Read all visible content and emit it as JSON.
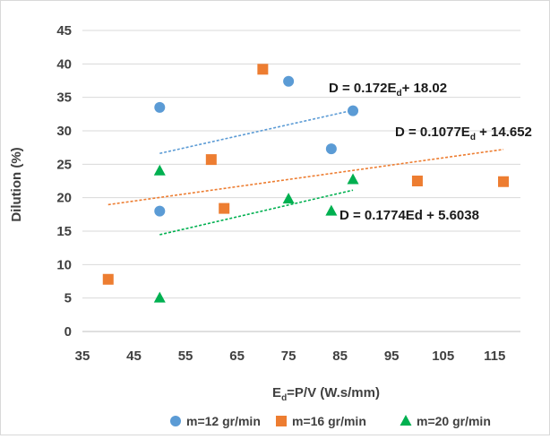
{
  "chart_data": {
    "type": "scatter",
    "xlabel": "E",
    "xlabel_sub": "d",
    "xlabel_rest": "=P/V (W.s/mm)",
    "ylabel": "Dilution (%)",
    "xlim": [
      35,
      120
    ],
    "ylim": [
      0,
      45
    ],
    "x_ticks": [
      "35",
      "45",
      "55",
      "65",
      "75",
      "85",
      "95",
      "105",
      "115"
    ],
    "y_ticks": [
      "0",
      "5",
      "10",
      "15",
      "20",
      "25",
      "30",
      "35",
      "40",
      "45"
    ],
    "grid": "horizontal",
    "legend_position": "bottom",
    "series": [
      {
        "name": "m=12 gr/min",
        "marker": "circle",
        "color": "#5B9BD5",
        "points": [
          [
            50,
            33.5
          ],
          [
            50,
            18
          ],
          [
            75,
            37.4
          ],
          [
            83.3,
            27.3
          ],
          [
            87.5,
            33
          ]
        ],
        "trendline": {
          "x": [
            50,
            87.5
          ],
          "y": [
            26.62,
            33.07
          ]
        },
        "equation": {
          "pre": "D = 0.172E",
          "sub": "d",
          "post": "+ 18.02"
        }
      },
      {
        "name": "m=16 gr/min",
        "marker": "square",
        "color": "#ED7D31",
        "points": [
          [
            40,
            7.8
          ],
          [
            60,
            25.7
          ],
          [
            62.5,
            18.4
          ],
          [
            70,
            39.2
          ],
          [
            100,
            22.5
          ],
          [
            116.7,
            22.4
          ]
        ],
        "trendline": {
          "x": [
            40,
            116.7
          ],
          "y": [
            18.96,
            27.22
          ]
        },
        "equation": {
          "pre": "D = 0.1077E",
          "sub": "d",
          "post": " + 14.652"
        }
      },
      {
        "name": "m=20 gr/min",
        "marker": "triangle",
        "color": "#00B050",
        "points": [
          [
            50,
            24
          ],
          [
            50,
            5
          ],
          [
            75,
            19.8
          ],
          [
            83.3,
            18
          ],
          [
            87.5,
            22.7
          ]
        ],
        "trendline": {
          "x": [
            50,
            87.5
          ],
          "y": [
            14.47,
            21.13
          ]
        },
        "equation": {
          "pre": "D = 0.1774Ed + 5.6038",
          "sub": "",
          "post": ""
        }
      }
    ]
  }
}
